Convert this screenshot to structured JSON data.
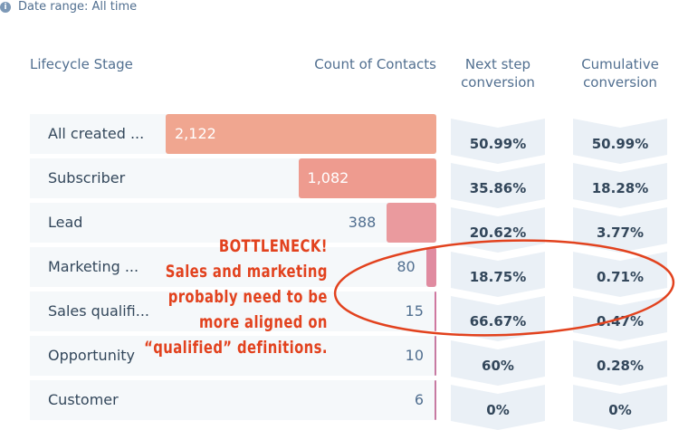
{
  "date_range": {
    "icon": "info-icon",
    "label": "Date range: All time"
  },
  "headers": {
    "stage": "Lifecycle Stage",
    "count": "Count of Contacts",
    "next": "Next step conversion",
    "cumulative": "Cumulative conversion"
  },
  "max_count": 2122,
  "rows": [
    {
      "stage": "All created ...",
      "count": 2122,
      "count_label": "2,122",
      "next": "50.99%",
      "cumulative": "50.99%",
      "color": "#f0a690"
    },
    {
      "stage": "Subscriber",
      "count": 1082,
      "count_label": "1,082",
      "next": "35.86%",
      "cumulative": "18.28%",
      "color": "#ee9b8f"
    },
    {
      "stage": "Lead",
      "count": 388,
      "count_label": "388",
      "next": "20.62%",
      "cumulative": "3.77%",
      "color": "#ea9a9e"
    },
    {
      "stage": "Marketing ...",
      "count": 80,
      "count_label": "80",
      "next": "18.75%",
      "cumulative": "0.71%",
      "color": "#e08ba0"
    },
    {
      "stage": "Sales qualifi...",
      "count": 15,
      "count_label": "15",
      "next": "66.67%",
      "cumulative": "0.47%",
      "color": "#cf78a0"
    },
    {
      "stage": "Opportunity",
      "count": 10,
      "count_label": "10",
      "next": "60%",
      "cumulative": "0.28%",
      "color": "#c77aa2"
    },
    {
      "stage": "Customer",
      "count": 6,
      "count_label": "6",
      "next": "0%",
      "cumulative": "0%",
      "color": "#c77aa2"
    }
  ],
  "annotation": {
    "lines": [
      "BOTTLENECK!",
      "Sales and marketing",
      "probably need to be",
      "more aligned on",
      "“qualified” definitions."
    ],
    "color": "#e2421e"
  }
}
